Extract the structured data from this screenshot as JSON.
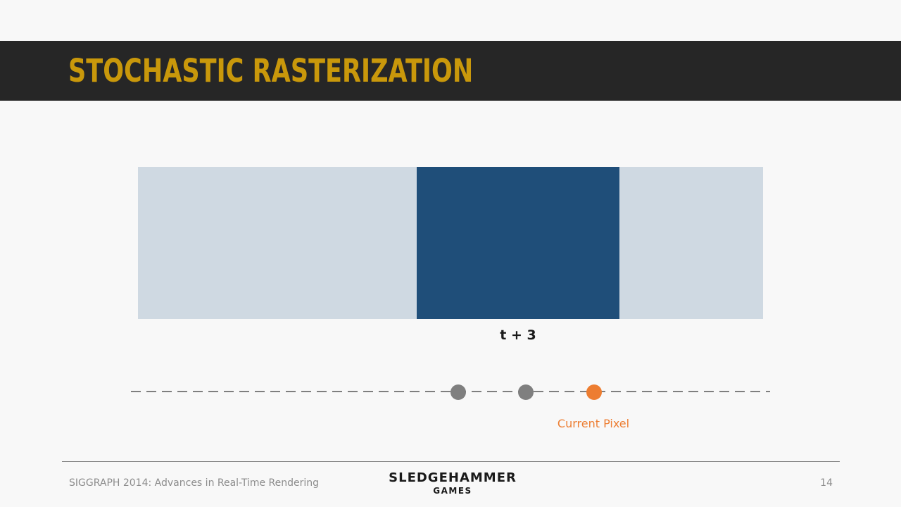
{
  "slide": {
    "title": "STOCHASTIC RASTERIZATION"
  },
  "diagram": {
    "frame_label": "t + 3",
    "current_pixel_label": "Current Pixel",
    "colors": {
      "background_bar": "#cfd9e2",
      "object_block": "#1f4e79",
      "timeline_dash": "#7f7f7f",
      "sample_dot": "#7f7f7f",
      "current_pixel_dot": "#ed7d31"
    }
  },
  "footer": {
    "conference": "SIGGRAPH 2014: Advances in Real-Time Rendering",
    "logo_line1": "SLEDGEHAMMER",
    "logo_line2": "GAMES",
    "page_number": "14"
  }
}
